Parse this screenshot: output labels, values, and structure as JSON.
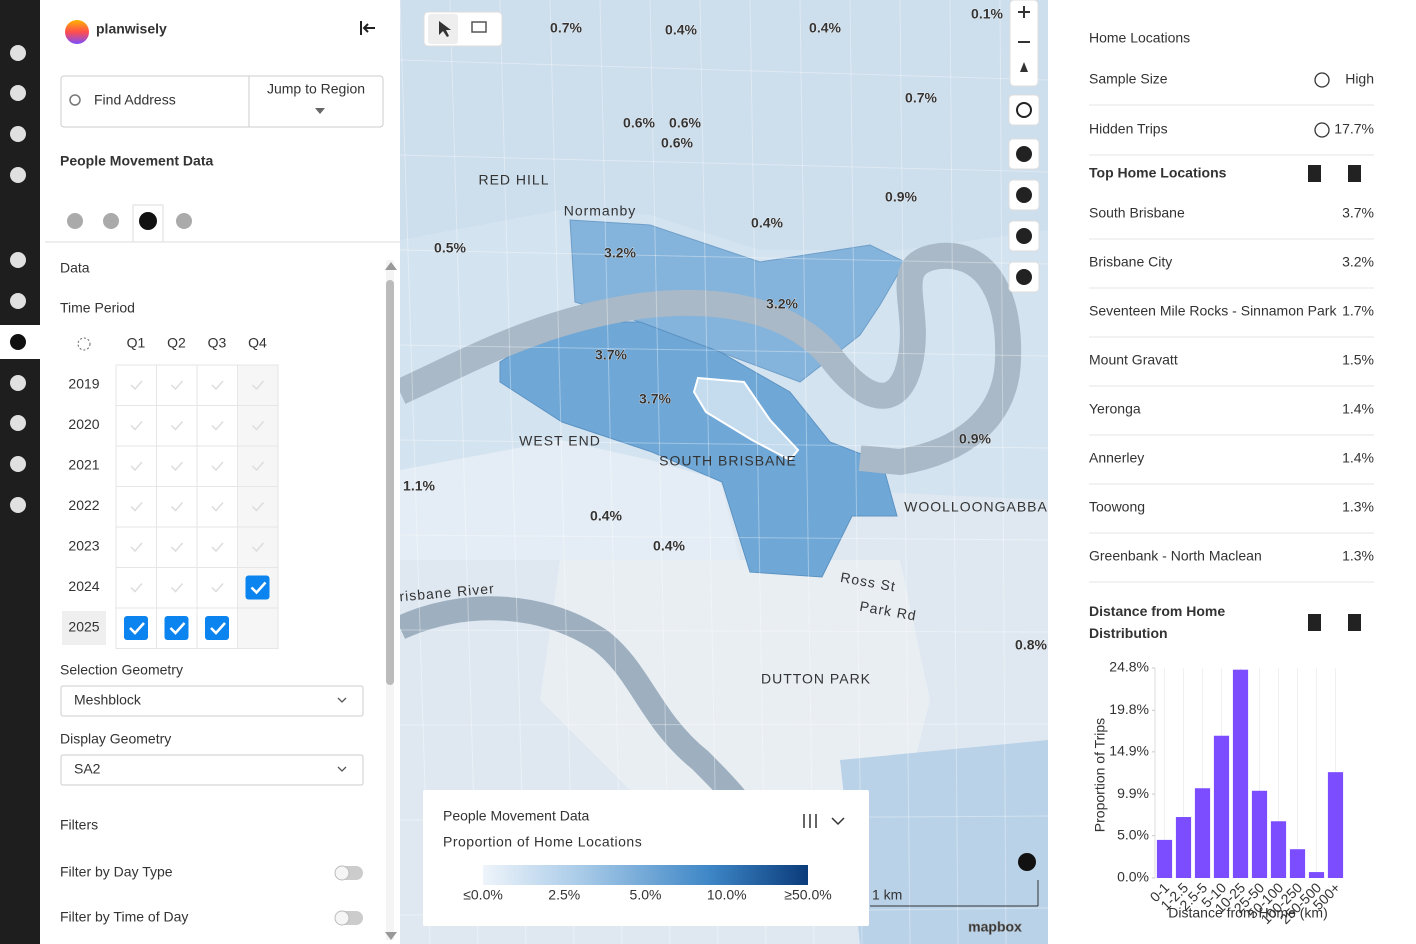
{
  "brand": "planwisely",
  "search": {
    "placeholder": "Find Address",
    "jump": "Jump to Region"
  },
  "panel": {
    "title": "People Movement Data",
    "section": "Data",
    "time_period": "Time Period",
    "quarters": [
      "Q1",
      "Q2",
      "Q3",
      "Q4"
    ],
    "years": [
      {
        "year": "2019",
        "checked": [
          false,
          false,
          false,
          false
        ]
      },
      {
        "year": "2020",
        "checked": [
          false,
          false,
          false,
          false
        ]
      },
      {
        "year": "2021",
        "checked": [
          false,
          false,
          false,
          false
        ]
      },
      {
        "year": "2022",
        "checked": [
          false,
          false,
          false,
          false
        ]
      },
      {
        "year": "2023",
        "checked": [
          false,
          false,
          false,
          false
        ]
      },
      {
        "year": "2024",
        "checked": [
          false,
          false,
          false,
          true
        ]
      },
      {
        "year": "2025",
        "checked": [
          true,
          true,
          true,
          false
        ]
      }
    ],
    "selection_geometry": {
      "label": "Selection Geometry",
      "value": "Meshblock"
    },
    "display_geometry": {
      "label": "Display Geometry",
      "value": "SA2"
    },
    "filters": {
      "title": "Filters",
      "items": [
        "Filter by Day Type",
        "Filter by Time of Day"
      ]
    }
  },
  "map": {
    "area_labels": [
      "0.7%",
      "0.4%",
      "0.4%",
      "0.1%",
      "0.7%",
      "0.6%",
      "0.6%",
      "0.6%",
      "0.9%",
      "0.4%",
      "0.5%",
      "3.2%",
      "3.2%",
      "3.7%",
      "3.7%",
      "0.9%",
      "1.1%",
      "0.4%",
      "0.4%",
      "0.8%"
    ],
    "place_labels": [
      "SOUTH BRISBANE",
      "WEST END",
      "DUTTON PARK",
      "WOOLLOONGABBA",
      "RED HILL",
      "Normanby",
      "Brisbane River",
      "Park Rd",
      "Ross St"
    ],
    "scale": "1 km",
    "attribution": "mapbox",
    "legend": {
      "title": "People Movement Data",
      "subtitle": "Proportion of Home Locations",
      "ticks": [
        "≤0.0%",
        "2.5%",
        "5.0%",
        "10.0%",
        "≥50.0%"
      ]
    }
  },
  "right_panel": {
    "title": "Home Locations",
    "sample_size": {
      "label": "Sample Size",
      "value": "High"
    },
    "hidden_trips": {
      "label": "Hidden Trips",
      "value": "17.7%"
    },
    "top_title": "Top Home Locations",
    "top": [
      {
        "name": "South Brisbane",
        "value": "3.7%"
      },
      {
        "name": "Brisbane City",
        "value": "3.2%"
      },
      {
        "name": "Seventeen Mile Rocks - Sinnamon Park",
        "value": "1.7%"
      },
      {
        "name": "Mount Gravatt",
        "value": "1.5%"
      },
      {
        "name": "Yeronga",
        "value": "1.4%"
      },
      {
        "name": "Annerley",
        "value": "1.4%"
      },
      {
        "name": "Toowong",
        "value": "1.3%"
      },
      {
        "name": "Greenbank - North Maclean",
        "value": "1.3%"
      }
    ]
  },
  "chart_data": {
    "type": "bar",
    "title": "Distance from Home Distribution",
    "x_label": "Distance from Home (km)",
    "y_label": "Proportion of Trips",
    "categories": [
      "0-1",
      "1-2.5",
      "2.5-5",
      "5-10",
      "10-25",
      "25-50",
      "50-100",
      "100-250",
      "250-500",
      "500+"
    ],
    "values": [
      4.5,
      7.2,
      10.6,
      16.8,
      24.6,
      10.3,
      6.7,
      3.4,
      0.7,
      12.5
    ],
    "color": "#7b4dff",
    "ylim": [
      0,
      24.8
    ],
    "yticks": [
      {
        "value": 0,
        "label": "0.0%"
      },
      {
        "value": 5,
        "label": "5.0%"
      },
      {
        "value": 9.9,
        "label": "9.9%"
      },
      {
        "value": 14.9,
        "label": "14.9%"
      },
      {
        "value": 19.8,
        "label": "19.8%"
      },
      {
        "value": 24.8,
        "label": "24.8%"
      }
    ]
  }
}
